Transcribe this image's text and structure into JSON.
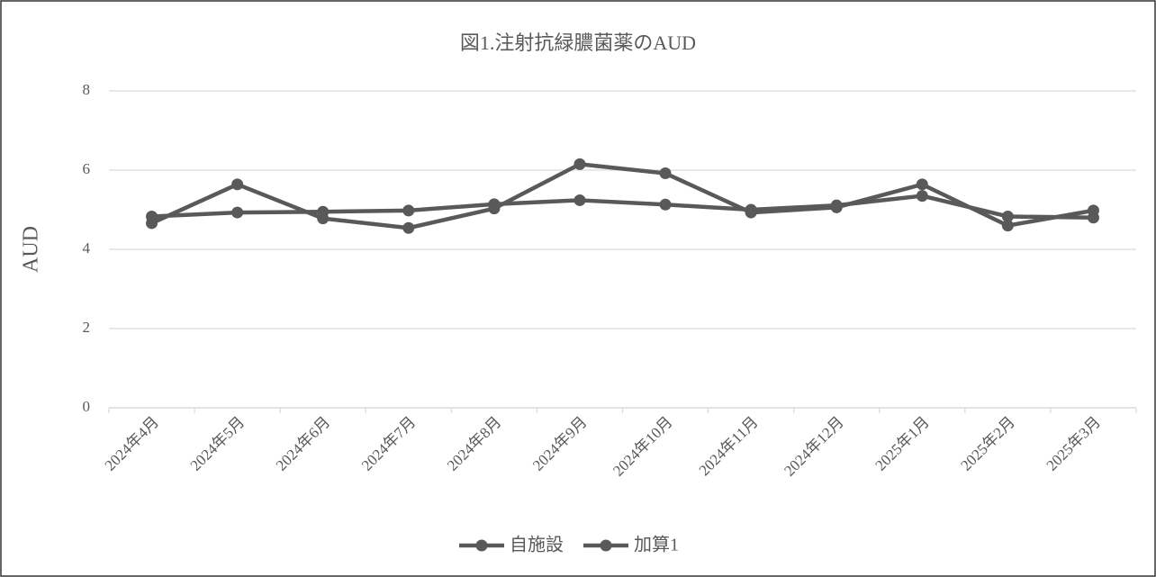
{
  "chart_data": {
    "type": "line",
    "title": "図1.注射抗緑膿菌薬のAUD",
    "y_label": "AUD",
    "categories": [
      "2024年4月",
      "2024年5月",
      "2024年6月",
      "2024年7月",
      "2024年8月",
      "2024年9月",
      "2024年10月",
      "2024年11月",
      "2024年12月",
      "2025年1月",
      "2025年2月",
      "2025年3月"
    ],
    "series": [
      {
        "name": "自施設",
        "color": "#595959",
        "values": [
          4.66,
          5.64,
          4.78,
          4.54,
          5.03,
          6.15,
          5.92,
          4.93,
          5.06,
          5.64,
          4.6,
          4.98
        ]
      },
      {
        "name": "加算1",
        "color": "#595959",
        "values": [
          4.83,
          4.93,
          4.95,
          4.98,
          5.14,
          5.24,
          5.13,
          5.0,
          5.11,
          5.35,
          4.83,
          4.8
        ]
      }
    ],
    "ylim": [
      0,
      8
    ],
    "yticks": [
      0,
      2,
      4,
      6,
      8
    ],
    "grid": true,
    "legend": "bottom"
  }
}
